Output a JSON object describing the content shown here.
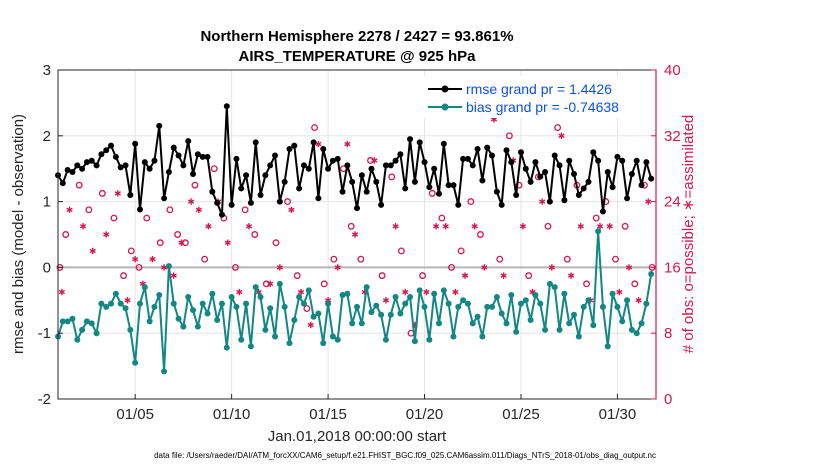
{
  "chart_data": {
    "type": "line",
    "title": "Northern Hemisphere 2278 / 2427 = 93.861%",
    "subtitle": "AIRS_TEMPERATURE @ 925 hPa",
    "xlabel": "Jan.01,2018 00:00:00 start",
    "ylabel": "rmse and bias (model - observation)",
    "ylabel_right": "# of obs: o=possible; ∗=assimilated",
    "footer": "data file: /Users/raeder/DAI/ATM_forcXX/CAM6_setup/f.e21.FHIST_BGC.f09_025.CAM6assim.011/Diags_NTrS_2018-01/obs_diag_output.nc",
    "xlim": [
      1,
      32
    ],
    "ylim": [
      -2,
      3
    ],
    "ylim_right": [
      0,
      40
    ],
    "x_ticks": [
      5,
      10,
      15,
      20,
      25,
      30
    ],
    "x_tick_labels": [
      "01/05",
      "01/10",
      "01/15",
      "01/20",
      "01/25",
      "01/30"
    ],
    "y_ticks": [
      -2,
      -1,
      0,
      1,
      2,
      3
    ],
    "y_tick_labels": [
      "-2",
      "-1",
      "0",
      "1",
      "2",
      "3"
    ],
    "y_right_ticks": [
      0,
      8,
      16,
      24,
      32,
      40
    ],
    "y_right_tick_labels": [
      "0",
      "8",
      "16",
      "24",
      "32",
      "40"
    ],
    "legend_position": "top-right",
    "series": [
      {
        "name": "rmse grand pr = 1.4426",
        "color": "#000000",
        "marker": "filled-circle",
        "x": [
          1.0,
          1.25,
          1.5,
          1.75,
          2.0,
          2.25,
          2.5,
          2.75,
          3.0,
          3.25,
          3.5,
          3.75,
          4.0,
          4.25,
          4.5,
          4.75,
          5.0,
          5.25,
          5.5,
          5.75,
          6.0,
          6.25,
          6.5,
          6.75,
          7.0,
          7.25,
          7.5,
          7.75,
          8.0,
          8.25,
          8.5,
          8.75,
          9.0,
          9.25,
          9.5,
          9.75,
          10.0,
          10.25,
          10.5,
          10.75,
          11.0,
          11.25,
          11.5,
          11.75,
          12.0,
          12.25,
          12.5,
          12.75,
          13.0,
          13.25,
          13.5,
          13.75,
          14.0,
          14.25,
          14.5,
          14.75,
          15.0,
          15.25,
          15.5,
          15.75,
          16.0,
          16.25,
          16.5,
          16.75,
          17.0,
          17.25,
          17.5,
          17.75,
          18.0,
          18.25,
          18.5,
          18.75,
          19.0,
          19.25,
          19.5,
          19.75,
          20.0,
          20.25,
          20.5,
          20.75,
          21.0,
          21.25,
          21.5,
          21.75,
          22.0,
          22.25,
          22.5,
          22.75,
          23.0,
          23.25,
          23.5,
          23.75,
          24.0,
          24.25,
          24.5,
          24.75,
          25.0,
          25.25,
          25.5,
          25.75,
          26.0,
          26.25,
          26.5,
          26.75,
          27.0,
          27.25,
          27.5,
          27.75,
          28.0,
          28.25,
          28.5,
          28.75,
          29.0,
          29.25,
          29.5,
          29.75,
          30.0,
          30.25,
          30.5,
          30.75,
          31.0,
          31.25,
          31.5,
          31.75
        ],
        "values": [
          1.4,
          1.28,
          1.48,
          1.45,
          1.55,
          1.5,
          1.6,
          1.62,
          1.55,
          1.72,
          1.78,
          1.85,
          1.68,
          1.52,
          1.55,
          1.1,
          1.88,
          0.88,
          1.6,
          1.5,
          1.62,
          2.15,
          1.05,
          1.45,
          1.82,
          1.7,
          1.55,
          1.92,
          1.42,
          1.72,
          1.68,
          1.68,
          1.15,
          0.98,
          0.8,
          2.45,
          0.95,
          1.65,
          1.2,
          1.4,
          0.98,
          1.9,
          1.1,
          1.4,
          1.55,
          1.7,
          1.0,
          1.3,
          1.8,
          1.85,
          1.2,
          1.55,
          1.5,
          1.9,
          1.05,
          1.8,
          1.5,
          1.62,
          1.65,
          1.15,
          1.55,
          1.3,
          0.9,
          1.4,
          1.15,
          1.5,
          1.3,
          0.95,
          1.55,
          1.55,
          1.62,
          1.72,
          1.2,
          1.95,
          1.3,
          1.9,
          1.6,
          1.22,
          1.5,
          1.12,
          1.88,
          1.25,
          1.25,
          0.95,
          1.65,
          1.65,
          1.55,
          1.8,
          1.32,
          1.82,
          1.7,
          1.15,
          0.95,
          1.78,
          1.6,
          1.1,
          1.75,
          1.5,
          1.3,
          1.6,
          1.38,
          1.45,
          1.0,
          1.7,
          1.55,
          1.02,
          1.62,
          1.42,
          1.1,
          1.2,
          1.3,
          1.75,
          1.62,
          0.85,
          1.45,
          1.22,
          1.68,
          1.62,
          1.05,
          1.42,
          1.62,
          1.25,
          1.6,
          1.35
        ]
      },
      {
        "name": "bias grand pr = -0.74638",
        "color": "#128784",
        "marker": "filled-circle",
        "x": [
          1.0,
          1.25,
          1.5,
          1.75,
          2.0,
          2.25,
          2.5,
          2.75,
          3.0,
          3.25,
          3.5,
          3.75,
          4.0,
          4.25,
          4.5,
          4.75,
          5.0,
          5.25,
          5.5,
          5.75,
          6.0,
          6.25,
          6.5,
          6.75,
          7.0,
          7.25,
          7.5,
          7.75,
          8.0,
          8.25,
          8.5,
          8.75,
          9.0,
          9.25,
          9.5,
          9.75,
          10.0,
          10.25,
          10.5,
          10.75,
          11.0,
          11.25,
          11.5,
          11.75,
          12.0,
          12.25,
          12.5,
          12.75,
          13.0,
          13.25,
          13.5,
          13.75,
          14.0,
          14.25,
          14.5,
          14.75,
          15.0,
          15.25,
          15.5,
          15.75,
          16.0,
          16.25,
          16.5,
          16.75,
          17.0,
          17.25,
          17.5,
          17.75,
          18.0,
          18.25,
          18.5,
          18.75,
          19.0,
          19.25,
          19.5,
          19.75,
          20.0,
          20.25,
          20.5,
          20.75,
          21.0,
          21.25,
          21.5,
          21.75,
          22.0,
          22.25,
          22.5,
          22.75,
          23.0,
          23.25,
          23.5,
          23.75,
          24.0,
          24.25,
          24.5,
          24.75,
          25.0,
          25.25,
          25.5,
          25.75,
          26.0,
          26.25,
          26.5,
          26.75,
          27.0,
          27.25,
          27.5,
          27.75,
          28.0,
          28.25,
          28.5,
          28.75,
          29.0,
          29.25,
          29.5,
          29.75,
          30.0,
          30.25,
          30.5,
          30.75,
          31.0,
          31.25,
          31.5,
          31.75
        ],
        "values": [
          -1.05,
          -0.82,
          -0.82,
          -0.78,
          -1.1,
          -0.95,
          -0.82,
          -0.85,
          -1.0,
          -0.55,
          -0.6,
          -0.55,
          -0.4,
          -0.55,
          -0.62,
          -0.95,
          -1.45,
          -0.55,
          -0.3,
          -0.82,
          -0.6,
          -0.42,
          -1.58,
          0.02,
          -0.55,
          -0.78,
          -0.9,
          -0.45,
          -0.65,
          -0.9,
          -0.55,
          -0.7,
          -0.4,
          -0.8,
          -0.55,
          -1.22,
          -0.45,
          -0.6,
          -1.1,
          -0.55,
          -1.2,
          -0.3,
          -0.45,
          -0.95,
          -0.62,
          -1.05,
          -0.25,
          -0.6,
          -1.15,
          -0.8,
          -0.45,
          -0.55,
          -0.35,
          -0.75,
          -0.7,
          -1.15,
          -0.55,
          -1.05,
          -1.1,
          -0.42,
          -0.4,
          -0.85,
          -0.6,
          -0.85,
          -0.3,
          -0.68,
          -0.58,
          -0.72,
          -1.1,
          -0.72,
          -0.45,
          -0.7,
          -0.55,
          -0.45,
          -1.12,
          -0.35,
          -0.6,
          -1.1,
          -0.4,
          -0.85,
          -0.35,
          -0.55,
          -1.05,
          -0.6,
          -0.5,
          -0.55,
          -0.85,
          -0.75,
          -1.05,
          -0.6,
          -0.6,
          -0.45,
          -0.7,
          -0.85,
          -0.42,
          -0.98,
          -0.55,
          -0.5,
          -0.8,
          -0.42,
          -0.55,
          -0.95,
          -0.25,
          -0.3,
          -0.95,
          -0.4,
          -0.85,
          -0.72,
          -1.05,
          -0.6,
          -0.5,
          -0.88,
          0.55,
          -0.6,
          -1.2,
          -0.4,
          -0.6,
          -0.82,
          -0.5,
          -0.95,
          -1.0,
          -0.85,
          -0.55,
          -0.1
        ]
      },
      {
        "name": "# obs possible",
        "color": "#d6174f",
        "marker": "open-circle",
        "axis": "right",
        "x": [
          1.1,
          1.4,
          2.1,
          2.6,
          3.3,
          3.9,
          4.4,
          4.8,
          5.2,
          5.6,
          6.3,
          6.8,
          7.2,
          7.6,
          8.1,
          8.6,
          9.1,
          9.6,
          10.2,
          10.7,
          11.2,
          11.8,
          12.3,
          12.9,
          13.4,
          13.9,
          14.3,
          14.8,
          15.3,
          15.8,
          16.2,
          16.7,
          17.2,
          17.8,
          18.3,
          18.8,
          19.3,
          19.9,
          20.4,
          20.9,
          21.4,
          21.9,
          22.4,
          22.9,
          23.4,
          23.9,
          24.4,
          24.9,
          25.4,
          25.9,
          26.4,
          26.9,
          27.4,
          27.9,
          28.4,
          28.9,
          29.4,
          29.9,
          30.4,
          30.9,
          31.4,
          31.8
        ],
        "values": [
          16,
          20,
          26,
          23,
          25,
          22,
          15,
          18,
          16,
          22,
          19,
          23,
          20,
          19,
          26,
          17,
          28,
          22,
          16,
          23,
          20,
          14,
          19,
          24,
          15,
          11,
          33,
          14,
          17,
          28,
          21,
          17,
          29,
          15,
          27,
          18,
          8,
          15,
          25,
          22,
          16,
          18,
          24,
          20,
          36,
          17,
          32,
          26,
          15,
          27,
          21,
          33,
          17,
          26,
          14,
          22,
          24,
          17,
          21,
          14,
          26,
          16
        ]
      },
      {
        "name": "# obs assimilated",
        "color": "#d6174f",
        "marker": "asterisk",
        "axis": "right",
        "x": [
          1.2,
          1.6,
          2.3,
          2.8,
          3.5,
          4.1,
          4.6,
          5.0,
          5.4,
          5.9,
          6.5,
          7.0,
          7.4,
          7.9,
          8.3,
          8.8,
          9.3,
          9.8,
          10.4,
          10.9,
          11.4,
          12.0,
          12.5,
          13.1,
          13.6,
          14.1,
          14.5,
          15.0,
          15.5,
          16.0,
          16.4,
          16.9,
          17.4,
          18.0,
          18.5,
          19.0,
          19.5,
          20.1,
          20.6,
          21.1,
          21.6,
          22.1,
          22.6,
          23.1,
          23.6,
          24.1,
          24.6,
          25.1,
          25.6,
          26.1,
          26.6,
          27.1,
          27.6,
          28.1,
          28.6,
          29.1,
          29.6,
          30.1,
          30.6,
          31.1,
          31.6
        ],
        "values": [
          13,
          23,
          21,
          18,
          20,
          25,
          12,
          17,
          14,
          17,
          16,
          15,
          19,
          24,
          23,
          21,
          24,
          19,
          13,
          21,
          13,
          14,
          16,
          23,
          13,
          9,
          31,
          12,
          16,
          31,
          20,
          13,
          29,
          12,
          21,
          13,
          9,
          13,
          21,
          21,
          13,
          15,
          21,
          16,
          34,
          15,
          29,
          21,
          13,
          24,
          16,
          32,
          15,
          21,
          12,
          21,
          21,
          13,
          16,
          12,
          24
        ]
      }
    ]
  }
}
